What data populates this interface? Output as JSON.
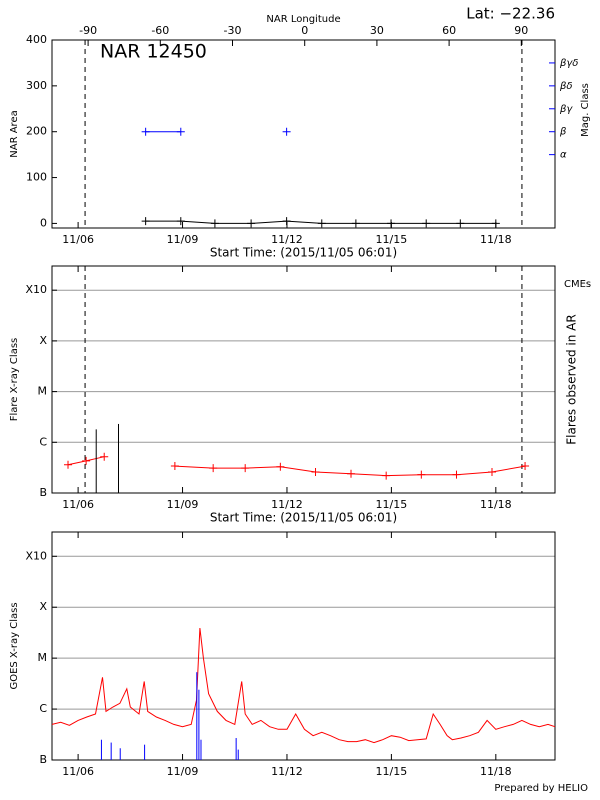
{
  "chart_data": [
    {
      "type": "line",
      "title": "Lat: −22.36",
      "annotation": "NAR 12450",
      "x2label": "NAR Longitude",
      "xlabel": "Start Time: (2015/11/05 06:01)",
      "ylabel": "NAR Area",
      "y2label": "Mag. Class",
      "xlim": [
        0.25,
        14.7
      ],
      "xticks": [
        {
          "value": 1,
          "label": "11/06"
        },
        {
          "value": 4,
          "label": "11/09"
        },
        {
          "value": 7,
          "label": "11/12"
        },
        {
          "value": 10,
          "label": "11/15"
        },
        {
          "value": 13,
          "label": "11/18"
        }
      ],
      "x2lim": [
        -105,
        104
      ],
      "x2ticks": [
        -90,
        -60,
        -30,
        0,
        30,
        60,
        90
      ],
      "ylim": [
        -10,
        400
      ],
      "yticks": [
        0,
        100,
        200,
        300,
        400
      ],
      "y2lim": [
        -0.2,
        8
      ],
      "y2ticks": [
        {
          "value": 3,
          "label": "α"
        },
        {
          "value": 4,
          "label": "β"
        },
        {
          "value": 5,
          "label": "βγ"
        },
        {
          "value": 6,
          "label": "βδ"
        },
        {
          "value": 7,
          "label": "βγδ"
        }
      ],
      "vlines": [
        1.2,
        13.75
      ],
      "x": [
        2.94,
        3.95,
        4.93,
        5.97,
        6.99,
        8.0,
        8.98,
        9.99,
        11.0,
        11.98,
        13.0
      ],
      "series": [
        {
          "color": "#000000",
          "marker": "+",
          "values": [
            5,
            5,
            0,
            0,
            5,
            0,
            0,
            0,
            0,
            0,
            0
          ]
        },
        {
          "color": "#0000ff",
          "marker": "+",
          "axis": "y2",
          "values": [
            4,
            4,
            null,
            null,
            4,
            null,
            null,
            null,
            null,
            null,
            null
          ]
        }
      ]
    },
    {
      "type": "line",
      "log": true,
      "grid": true,
      "xlabel": "Start Time: (2015/11/05 06:01)",
      "ylabel": "Flare X-ray Class",
      "y2label": "Flares observed in AR",
      "annotation": "CMEs",
      "annotation_color": "#ff0000",
      "xlim": [
        0.25,
        14.7
      ],
      "xticks": [
        {
          "value": 1,
          "label": "11/06"
        },
        {
          "value": 4,
          "label": "11/09"
        },
        {
          "value": 7,
          "label": "11/12"
        },
        {
          "value": 10,
          "label": "11/15"
        },
        {
          "value": 13,
          "label": "11/18"
        }
      ],
      "ylim": [
        1e-07,
        0.003
      ],
      "yticks": [
        {
          "value": 1e-07,
          "label": "B"
        },
        {
          "value": 1e-06,
          "label": "C"
        },
        {
          "value": 1e-05,
          "label": "M"
        },
        {
          "value": 0.0001,
          "label": "X"
        },
        {
          "value": 0.001,
          "label": "X10"
        }
      ],
      "vlines": [
        1.2,
        13.75
      ],
      "series": [
        {
          "color": "#ff0000",
          "marker": "+",
          "x": [
            0.71,
            1.23,
            1.75
          ],
          "values": [
            3.6e-07,
            4.3e-07,
            5.2e-07
          ]
        },
        {
          "color": "#ff0000",
          "marker": "+",
          "x": [
            3.78,
            4.88,
            5.8,
            6.81,
            7.82,
            8.84,
            9.85,
            10.86,
            11.87,
            12.89,
            13.84
          ],
          "values": [
            3.4e-07,
            3.1e-07,
            3.1e-07,
            3.3e-07,
            2.6e-07,
            2.4e-07,
            2.2e-07,
            2.3e-07,
            2.3e-07,
            2.6e-07,
            3.4e-07
          ]
        },
        {
          "color": "#000000",
          "mode": "stem",
          "x": [
            1.52,
            2.16
          ],
          "values": [
            1.8e-06,
            2.3e-06
          ]
        }
      ]
    },
    {
      "type": "line",
      "log": true,
      "grid": true,
      "ylabel": "GOES X-ray Class",
      "footer": "Prepared by HELIO",
      "xlim": [
        0.25,
        14.7
      ],
      "xticks": [
        {
          "value": 1,
          "label": "11/06"
        },
        {
          "value": 4,
          "label": "11/09"
        },
        {
          "value": 7,
          "label": "11/12"
        },
        {
          "value": 10,
          "label": "11/15"
        },
        {
          "value": 13,
          "label": "11/18"
        }
      ],
      "ylim": [
        1e-07,
        0.003
      ],
      "yticks": [
        {
          "value": 1e-07,
          "label": "B"
        },
        {
          "value": 1e-06,
          "label": "C"
        },
        {
          "value": 1e-05,
          "label": "M"
        },
        {
          "value": 0.0001,
          "label": "X"
        },
        {
          "value": 0.001,
          "label": "X10"
        }
      ],
      "series": [
        {
          "color": "#ff0000",
          "x": [
            0.25,
            0.5,
            0.75,
            1.0,
            1.25,
            1.5,
            1.7,
            1.8,
            2.0,
            2.2,
            2.4,
            2.5,
            2.75,
            2.9,
            3.0,
            3.25,
            3.5,
            3.75,
            4.0,
            4.25,
            4.4,
            4.5,
            4.6,
            4.75,
            5.0,
            5.25,
            5.5,
            5.7,
            5.8,
            6.0,
            6.25,
            6.5,
            6.75,
            7.0,
            7.25,
            7.5,
            7.75,
            8.0,
            8.25,
            8.5,
            8.75,
            9.0,
            9.25,
            9.5,
            9.75,
            10.0,
            10.25,
            10.5,
            10.75,
            11.0,
            11.2,
            11.4,
            11.6,
            11.75,
            12.0,
            12.25,
            12.5,
            12.75,
            13.0,
            13.25,
            13.5,
            13.75,
            14.0,
            14.25,
            14.5,
            14.7
          ],
          "values": [
            5e-07,
            5.5e-07,
            4.8e-07,
            6e-07,
            7e-07,
            8e-07,
            4.2e-06,
            9e-07,
            1.1e-06,
            1.3e-06,
            2.5e-06,
            1.1e-06,
            8e-07,
            3.5e-06,
            9e-07,
            7e-07,
            6e-07,
            5e-07,
            4.5e-07,
            5e-07,
            1.5e-06,
            3.9e-05,
            1e-05,
            2e-06,
            9e-07,
            6e-07,
            5e-07,
            3.5e-06,
            8e-07,
            5e-07,
            6e-07,
            4.5e-07,
            4e-07,
            4e-07,
            8e-07,
            4e-07,
            3e-07,
            3.5e-07,
            3e-07,
            2.5e-07,
            2.3e-07,
            2.3e-07,
            2.5e-07,
            2.2e-07,
            2.5e-07,
            3e-07,
            2.8e-07,
            2.4e-07,
            2.5e-07,
            2.6e-07,
            8e-07,
            5e-07,
            3e-07,
            2.5e-07,
            2.7e-07,
            3e-07,
            3.5e-07,
            6e-07,
            4e-07,
            4.5e-07,
            5e-07,
            6e-07,
            5e-07,
            4.5e-07,
            5e-07,
            4.5e-07
          ]
        },
        {
          "color": "#0000ff",
          "mode": "stem",
          "x": [
            1.67,
            1.95,
            2.21,
            2.91,
            4.41,
            4.47,
            4.53,
            5.54,
            5.6
          ],
          "values": [
            2.5e-07,
            2.2e-07,
            1.7e-07,
            2e-07,
            5.3e-06,
            2.4e-06,
            2.5e-07,
            2.7e-07,
            1.6e-07
          ]
        }
      ]
    }
  ]
}
